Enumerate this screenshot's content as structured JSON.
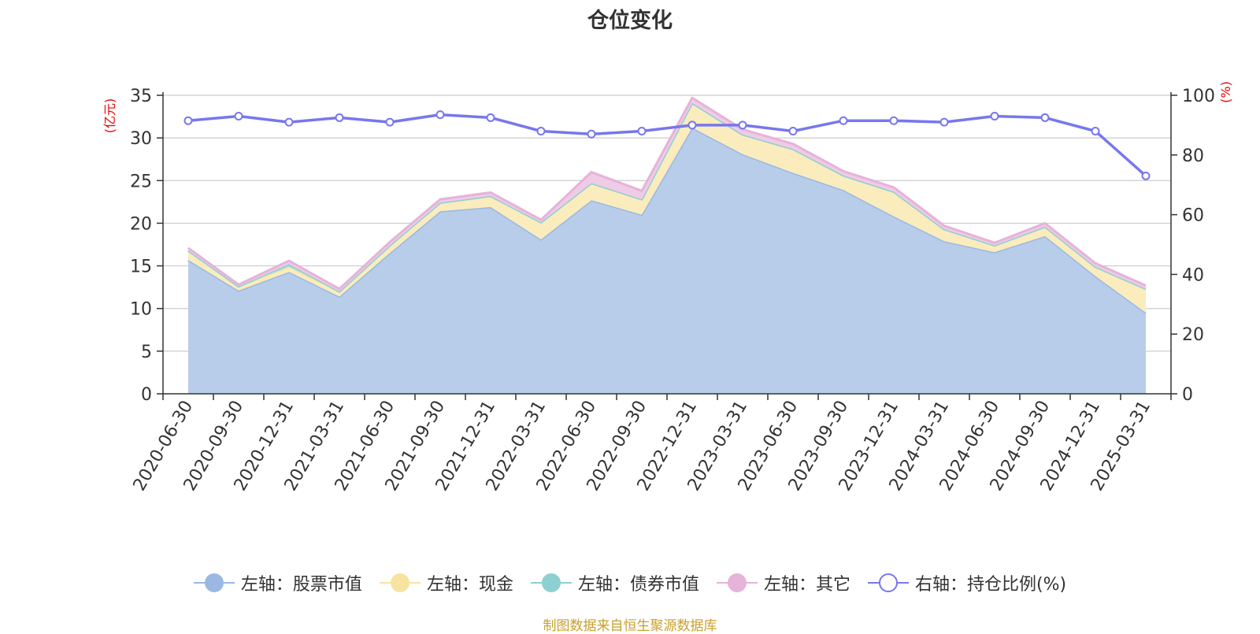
{
  "title": "仓位变化",
  "source": "制图数据来自恒生聚源数据库",
  "chart_data": {
    "type": "area",
    "categories": [
      "2020-06-30",
      "2020-09-30",
      "2020-12-31",
      "2021-03-31",
      "2021-06-30",
      "2021-09-30",
      "2021-12-31",
      "2022-03-31",
      "2022-06-30",
      "2022-09-30",
      "2022-12-31",
      "2023-03-31",
      "2023-06-30",
      "2023-09-30",
      "2023-12-31",
      "2024-03-31",
      "2024-06-30",
      "2024-09-30",
      "2024-12-31",
      "2025-03-31"
    ],
    "stacked": true,
    "left_axis": {
      "label": "(亿元)",
      "range": [
        0,
        35
      ],
      "ticks": [
        0,
        5,
        10,
        15,
        20,
        25,
        30,
        35
      ]
    },
    "right_axis": {
      "label": "(%)",
      "range": [
        0,
        100
      ],
      "ticks": [
        0,
        20,
        40,
        60,
        80,
        100
      ]
    },
    "grid": true,
    "legend_position": "bottom",
    "series": [
      {
        "name": "左轴：股票市值",
        "axis": "left",
        "color": "#9ab8e2",
        "fill": "#b8cdea",
        "values": [
          15.7,
          12.1,
          14.3,
          11.4,
          16.5,
          21.4,
          21.9,
          18.1,
          22.7,
          21.0,
          31.2,
          28.1,
          25.9,
          23.9,
          20.8,
          17.9,
          16.6,
          18.5,
          13.8,
          9.5
        ]
      },
      {
        "name": "左轴：现金",
        "axis": "left",
        "color": "#f7e3a0",
        "fill": "#faecbd",
        "values": [
          1.1,
          0.5,
          0.6,
          0.6,
          0.9,
          1.0,
          1.3,
          2.0,
          2.0,
          1.8,
          2.9,
          2.3,
          2.8,
          1.7,
          2.9,
          1.4,
          0.8,
          1.1,
          1.1,
          2.8
        ]
      },
      {
        "name": "左轴：债券市值",
        "axis": "left",
        "color": "#8dd0d2",
        "fill": "#a8dcdd",
        "values": [
          0.0,
          0.0,
          0.3,
          0.0,
          0.0,
          0.0,
          0.0,
          0.0,
          0.0,
          0.0,
          0.0,
          0.0,
          0.0,
          0.0,
          0.0,
          0.0,
          0.0,
          0.0,
          0.0,
          0.0
        ]
      },
      {
        "name": "左轴：其它",
        "axis": "left",
        "color": "#e6b3d9",
        "fill": "#efcbe6",
        "values": [
          0.3,
          0.2,
          0.4,
          0.3,
          0.4,
          0.4,
          0.4,
          0.3,
          1.3,
          1.0,
          0.6,
          0.6,
          0.6,
          0.5,
          0.5,
          0.4,
          0.3,
          0.4,
          0.4,
          0.4
        ]
      },
      {
        "name": "右轴：持仓比例(%)",
        "axis": "right",
        "type": "line",
        "color": "#7777ee",
        "values": [
          91.5,
          93.0,
          91.0,
          92.5,
          91.0,
          93.5,
          92.5,
          88.0,
          87.0,
          88.0,
          90.0,
          90.0,
          88.0,
          91.5,
          91.5,
          91.0,
          93.0,
          92.5,
          88.0,
          73.0
        ]
      }
    ]
  }
}
